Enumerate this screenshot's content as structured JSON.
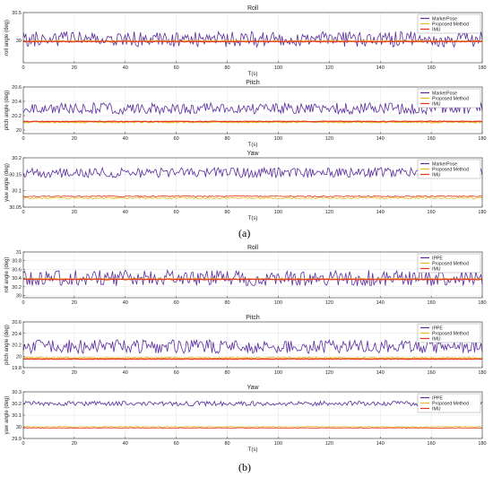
{
  "panels": [
    {
      "label": "(a)"
    },
    {
      "label": "(b)"
    }
  ],
  "chart_data": [
    {
      "type": "line",
      "title": "Roll",
      "xlabel": "T(s)",
      "ylabel": "roll angle (deg)",
      "xlim": [
        0,
        180
      ],
      "ylim": [
        29.6,
        30.5
      ],
      "xticks": [
        0,
        20,
        40,
        60,
        80,
        100,
        120,
        140,
        160,
        180
      ],
      "yticks": [
        30,
        30.5
      ],
      "grid": true,
      "legend": "top-right",
      "series": [
        {
          "name": "MarkerPose",
          "color": "#5b2c9e",
          "mean": 30.02,
          "amplitude": 0.14,
          "seed": 11
        },
        {
          "name": "Proposed Method",
          "color": "#e8b824",
          "mean": 29.99,
          "amplitude": 0.01,
          "seed": 12
        },
        {
          "name": "IMU",
          "color": "#e8321c",
          "mean": 29.98,
          "amplitude": 0.008,
          "seed": 13
        }
      ]
    },
    {
      "type": "line",
      "title": "Pitch",
      "xlabel": "T(s)",
      "ylabel": "pitch angle (deg)",
      "xlim": [
        0,
        180
      ],
      "ylim": [
        19.95,
        20.6
      ],
      "xticks": [
        0,
        20,
        40,
        60,
        80,
        100,
        120,
        140,
        160,
        180
      ],
      "yticks": [
        20,
        20.2,
        20.4,
        20.6
      ],
      "grid": true,
      "legend": "top-right",
      "series": [
        {
          "name": "MarkerPose",
          "color": "#5b2c9e",
          "mean": 20.3,
          "amplitude": 0.08,
          "seed": 21
        },
        {
          "name": "Proposed Method",
          "color": "#e8b824",
          "mean": 20.11,
          "amplitude": 0.01,
          "seed": 22
        },
        {
          "name": "IMU",
          "color": "#e8321c",
          "mean": 20.12,
          "amplitude": 0.005,
          "seed": 23
        }
      ]
    },
    {
      "type": "line",
      "title": "Yaw",
      "xlabel": "T(s)",
      "ylabel": "yaw angle (deg)",
      "xlim": [
        0,
        180
      ],
      "ylim": [
        30.05,
        30.2
      ],
      "xticks": [
        0,
        20,
        40,
        60,
        80,
        100,
        120,
        140,
        160,
        180
      ],
      "yticks": [
        30.05,
        30.1,
        30.15,
        30.2
      ],
      "grid": true,
      "legend": "top-right",
      "series": [
        {
          "name": "MarkerPose",
          "color": "#5b2c9e",
          "mean": 30.155,
          "amplitude": 0.015,
          "seed": 31
        },
        {
          "name": "Proposed Method",
          "color": "#e8b824",
          "mean": 30.078,
          "amplitude": 0.003,
          "seed": 32
        },
        {
          "name": "IMU",
          "color": "#e8321c",
          "mean": 30.083,
          "amplitude": 0.002,
          "seed": 33
        }
      ]
    },
    {
      "type": "line",
      "title": "Roll",
      "xlabel": "",
      "ylabel": "roll angle (deg)",
      "xlim": [
        0,
        180
      ],
      "ylim": [
        29.95,
        31
      ],
      "xticks": [
        0,
        20,
        40,
        60,
        80,
        100,
        120,
        140,
        160,
        180
      ],
      "yticks": [
        30,
        30.2,
        30.4,
        30.6,
        30.8,
        31
      ],
      "grid": true,
      "legend": "top-right",
      "series": [
        {
          "name": "IPPE",
          "color": "#5b2c9e",
          "mean": 30.4,
          "amplitude": 0.18,
          "seed": 41
        },
        {
          "name": "Proposed Method",
          "color": "#e8b824",
          "mean": 30.38,
          "amplitude": 0.01,
          "seed": 42
        },
        {
          "name": "IMU",
          "color": "#e8321c",
          "mean": 30.37,
          "amplitude": 0.008,
          "seed": 43
        }
      ]
    },
    {
      "type": "line",
      "title": "Pitch",
      "xlabel": "",
      "ylabel": "pitch angle (deg)",
      "xlim": [
        0,
        180
      ],
      "ylim": [
        19.8,
        20.6
      ],
      "xticks": [
        0,
        20,
        40,
        60,
        80,
        100,
        120,
        140,
        160,
        180
      ],
      "yticks": [
        19.8,
        20,
        20.2,
        20.4,
        20.6
      ],
      "grid": true,
      "legend": "top-right",
      "series": [
        {
          "name": "IPPE",
          "color": "#5b2c9e",
          "mean": 20.17,
          "amplitude": 0.12,
          "seed": 51
        },
        {
          "name": "Proposed Method",
          "color": "#e8b824",
          "mean": 19.97,
          "amplitude": 0.01,
          "seed": 52
        },
        {
          "name": "IMU",
          "color": "#e8321c",
          "mean": 19.95,
          "amplitude": 0.005,
          "seed": 53
        }
      ]
    },
    {
      "type": "line",
      "title": "Yaw",
      "xlabel": "T(s)",
      "ylabel": "yaw angle (deg)",
      "xlim": [
        0,
        180
      ],
      "ylim": [
        29.9,
        30.3
      ],
      "xticks": [
        0,
        20,
        40,
        60,
        80,
        100,
        120,
        140,
        160,
        180
      ],
      "yticks": [
        29.9,
        30,
        30.1,
        30.2,
        30.3
      ],
      "grid": true,
      "legend": "top-right",
      "series": [
        {
          "name": "IPPE",
          "color": "#5b2c9e",
          "mean": 30.2,
          "amplitude": 0.02,
          "seed": 61
        },
        {
          "name": "Proposed Method",
          "color": "#e8b824",
          "mean": 30.0,
          "amplitude": 0.004,
          "seed": 62
        },
        {
          "name": "IMU",
          "color": "#e8321c",
          "mean": 29.99,
          "amplitude": 0.003,
          "seed": 63
        }
      ]
    }
  ]
}
